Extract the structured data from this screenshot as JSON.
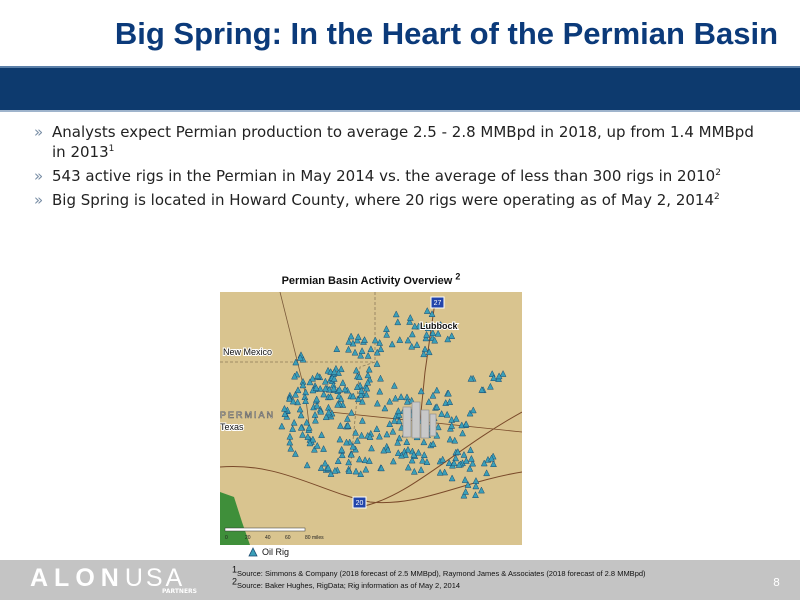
{
  "title": "Big Spring: In the Heart of the Permian Basin",
  "bullets": [
    {
      "text": "Analysts expect Permian production to average 2.5 - 2.8 MMBpd in 2018, up from 1.4 MMBpd in 2013",
      "note": "1"
    },
    {
      "text": "543 active rigs in the Permian in May 2014 vs. the average of less than 300 rigs in 2010",
      "note": "2"
    },
    {
      "text": "Big Spring is located in Howard County, where 20 rigs were operating as of May 2, 2014",
      "note": "2"
    }
  ],
  "map": {
    "title": "Permian Basin Activity Overview",
    "title_note": "2",
    "labels": {
      "lubbock": "Lubbock",
      "new_mexico": "New Mexico",
      "permian": "PERMIAN",
      "texas": "Texas"
    },
    "highways": [
      "27",
      "20"
    ],
    "scale": [
      "0",
      "20",
      "40",
      "60",
      "80 miles"
    ],
    "legend": "Oil Rig"
  },
  "footnotes": [
    {
      "note": "1",
      "text": "Source: Simmons & Company (2018 forecast of 2.5 MMBpd),  Raymond James & Associates  (2018 forecast of 2.8 MMBpd)"
    },
    {
      "note": "2",
      "text": "Source: Baker Hughes, RigData; Rig information as of May 2, 2014"
    }
  ],
  "footer": {
    "logo": [
      "ALON",
      "USA"
    ],
    "logo_sub": "PARTNERS",
    "page": "8"
  }
}
